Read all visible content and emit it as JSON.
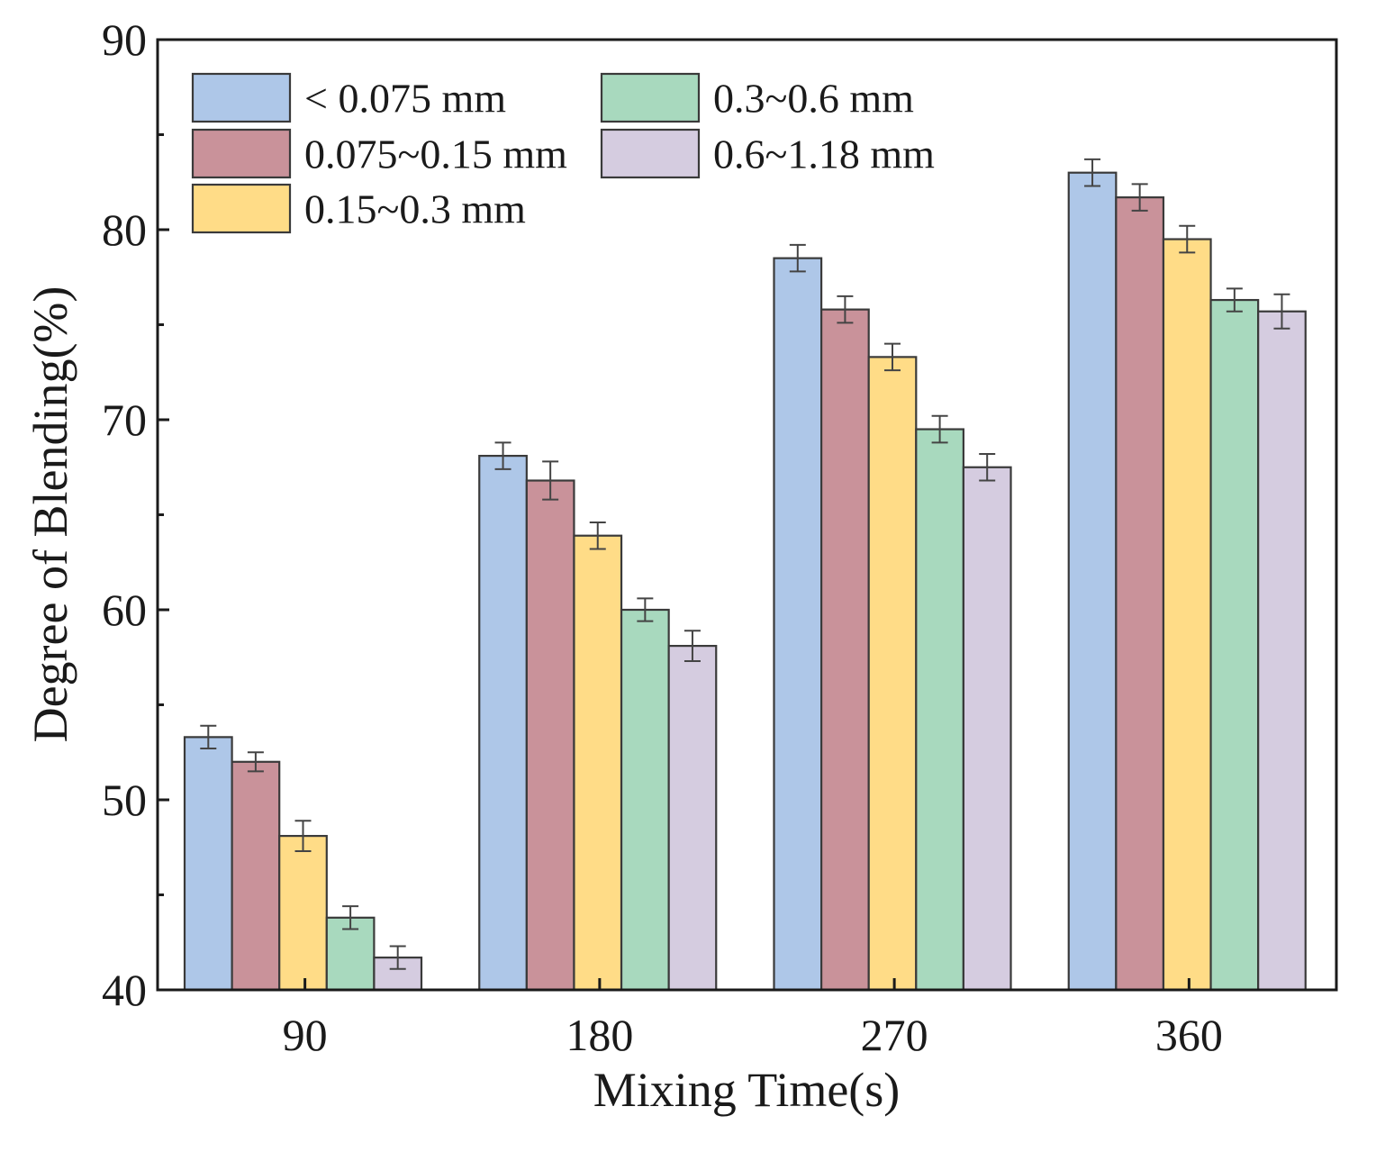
{
  "chart_data": {
    "type": "bar",
    "xlabel": "Mixing Time(s)",
    "ylabel": "Degree of Blending(%)",
    "ylim": [
      40,
      90
    ],
    "yticks": [
      "40",
      "50",
      "60",
      "70",
      "80",
      "90"
    ],
    "categories": [
      "90",
      "180",
      "270",
      "360"
    ],
    "legend_position": "top-left",
    "series": [
      {
        "name": "< 0.075 mm",
        "color": "#aec7e8",
        "values": [
          53.3,
          68.1,
          78.5,
          83.0
        ],
        "errors": [
          0.6,
          0.7,
          0.7,
          0.7
        ]
      },
      {
        "name": "0.075~0.15 mm",
        "color": "#c9929a",
        "values": [
          52.0,
          66.8,
          75.8,
          81.7
        ],
        "errors": [
          0.5,
          1.0,
          0.7,
          0.7
        ]
      },
      {
        "name": "0.15~0.3 mm",
        "color": "#ffdc87",
        "values": [
          48.1,
          63.9,
          73.3,
          79.5
        ],
        "errors": [
          0.8,
          0.7,
          0.7,
          0.7
        ]
      },
      {
        "name": "0.3~0.6 mm",
        "color": "#a8d9be",
        "values": [
          43.8,
          60.0,
          69.5,
          76.3
        ],
        "errors": [
          0.6,
          0.6,
          0.7,
          0.6
        ]
      },
      {
        "name": "0.6~1.18 mm",
        "color": "#d5cce0",
        "values": [
          41.7,
          58.1,
          67.5,
          75.7
        ],
        "errors": [
          0.6,
          0.8,
          0.7,
          0.9
        ]
      }
    ]
  }
}
